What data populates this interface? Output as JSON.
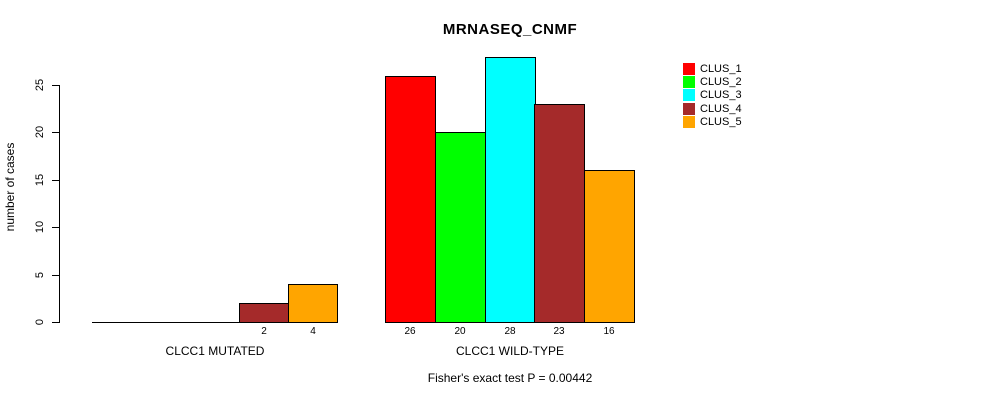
{
  "chart_data": {
    "type": "bar",
    "title": "MRNASEQ_CNMF",
    "xlabel": "",
    "ylabel": "number of cases",
    "ylim": [
      0,
      25
    ],
    "yticks": [
      0,
      5,
      10,
      15,
      20,
      25
    ],
    "grid": false,
    "legend_position": "right",
    "series": [
      {
        "name": "CLUS_1",
        "color": "#FF0000"
      },
      {
        "name": "CLUS_2",
        "color": "#00FF00"
      },
      {
        "name": "CLUS_3",
        "color": "#00FFFF"
      },
      {
        "name": "CLUS_4",
        "color": "#A52A2A"
      },
      {
        "name": "CLUS_5",
        "color": "#FFA500"
      }
    ],
    "groups": [
      {
        "label": "CLCC1 MUTATED",
        "values": [
          0,
          0,
          0,
          2,
          4
        ]
      },
      {
        "label": "CLCC1 WILD-TYPE",
        "values": [
          26,
          20,
          28,
          23,
          16
        ]
      }
    ],
    "bar_value_labels_shown": true,
    "annotation": "Fisher's exact test P = 0.00442"
  }
}
